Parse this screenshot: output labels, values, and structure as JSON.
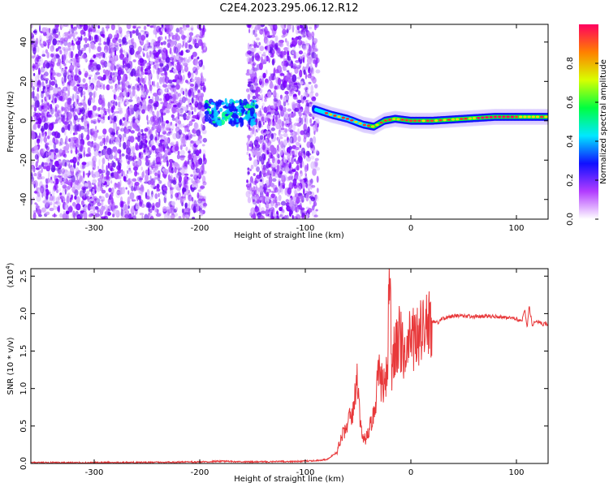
{
  "title": "C2E4.2023.295.06.12.R12",
  "colors": {
    "snr_line": "#e8383a",
    "colormap": [
      "#ffffff",
      "#b23cff",
      "#1010ff",
      "#00e8ff",
      "#00ff40",
      "#d8ff00",
      "#ff8000",
      "#ff0060"
    ]
  },
  "chart_data": [
    {
      "type": "heatmap",
      "xlabel": "Height of straight line (km)",
      "ylabel": "Frequency (Hz)",
      "xlim": [
        -360,
        130
      ],
      "ylim": [
        -50,
        49
      ],
      "xticks": [
        -300,
        -200,
        -100,
        0,
        100
      ],
      "yticks": [
        -40,
        -20,
        0,
        20,
        40
      ],
      "colorbar": {
        "label": "Normalized spectral amplitude",
        "range": [
          0.0,
          1.0
        ],
        "ticks": [
          "0.0",
          "0.2",
          "0.4",
          "0.6",
          "0.8"
        ]
      },
      "regions": [
        {
          "description": "noise",
          "x": [
            -360,
            -195
          ],
          "y": [
            -50,
            49
          ]
        },
        {
          "description": "noise",
          "x": [
            -155,
            -88
          ],
          "y": [
            -50,
            49
          ]
        },
        {
          "description": "signal",
          "x": [
            -195,
            -145
          ],
          "y": [
            -2,
            10
          ]
        },
        {
          "description": "signal",
          "x": [
            -92,
            130
          ],
          "y": [
            -3,
            10
          ]
        }
      ],
      "signal_track": {
        "x": [
          -92,
          -75,
          -60,
          -45,
          -35,
          -25,
          -15,
          0,
          20,
          50,
          80,
          100,
          130
        ],
        "y": [
          6,
          3,
          1,
          -2,
          -3,
          0,
          1,
          0,
          0,
          1,
          2,
          2,
          2
        ]
      }
    },
    {
      "type": "line",
      "xlabel": "Height of straight line (km)",
      "ylabel": "SNR (10 * v/v)",
      "multiplier": "(x10",
      "multiplier_exp": "4",
      "multiplier_close": ")",
      "xlim": [
        -360,
        130
      ],
      "ylim": [
        0,
        2.6
      ],
      "xticks": [
        -300,
        -200,
        -100,
        0,
        100
      ],
      "yticks": [
        "0.0",
        "0.5",
        "1.0",
        "1.5",
        "2.0",
        "2.5"
      ],
      "series": [
        {
          "x": [
            -360,
            -300,
            -200,
            -180,
            -150,
            -100,
            -80,
            -70,
            -65,
            -60,
            -55,
            -50,
            -48,
            -45,
            -40,
            -35,
            -30,
            -25,
            -22,
            -20,
            -18,
            -15,
            -10,
            -5,
            0,
            5,
            10,
            15,
            20,
            25,
            30,
            35,
            40,
            50,
            60,
            70,
            80,
            90,
            100,
            105,
            108,
            110,
            112,
            115,
            120,
            125,
            130
          ],
          "y": [
            0.01,
            0.01,
            0.02,
            0.03,
            0.02,
            0.03,
            0.05,
            0.15,
            0.4,
            0.5,
            0.7,
            1.15,
            0.6,
            0.3,
            0.4,
            0.7,
            1.2,
            1.0,
            1.4,
            2.6,
            1.3,
            1.5,
            1.7,
            1.3,
            1.8,
            1.6,
            1.75,
            1.85,
            1.9,
            1.88,
            1.93,
            1.95,
            1.97,
            1.97,
            1.96,
            1.97,
            1.96,
            1.95,
            1.93,
            1.9,
            2.05,
            1.8,
            2.1,
            1.85,
            1.9,
            1.86,
            1.86
          ]
        }
      ]
    }
  ]
}
